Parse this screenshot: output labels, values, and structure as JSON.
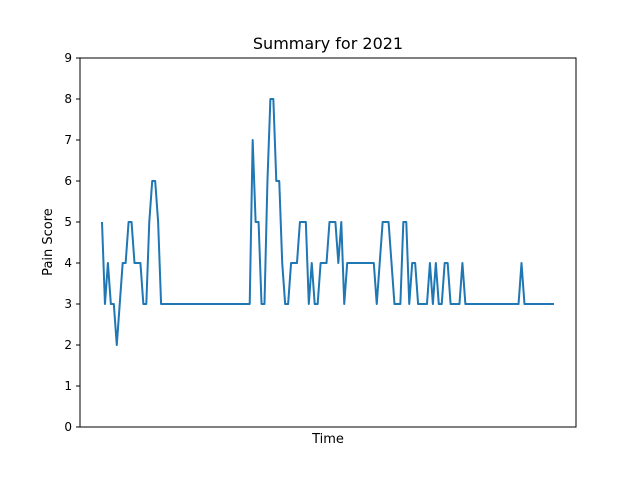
{
  "chart_data": {
    "type": "line",
    "title": "Summary for 2021",
    "xlabel": "Time",
    "ylabel": "Pain Score",
    "ylim": [
      0,
      9
    ],
    "yticks": [
      0,
      1,
      2,
      3,
      4,
      5,
      6,
      7,
      8,
      9
    ],
    "x_ticks_labeled": false,
    "grid": false,
    "legend": "none",
    "line_color": "#1f77b4",
    "series": [
      {
        "points": [
          [
            0,
            5
          ],
          [
            1,
            3
          ],
          [
            2,
            4
          ],
          [
            3,
            3
          ],
          [
            4,
            3
          ],
          [
            5,
            2
          ],
          [
            6,
            3
          ],
          [
            7,
            4
          ],
          [
            8,
            4
          ],
          [
            9,
            5
          ],
          [
            10,
            5
          ],
          [
            11,
            4
          ],
          [
            12,
            4
          ],
          [
            13,
            4
          ],
          [
            14,
            3
          ],
          [
            15,
            3
          ],
          [
            16,
            5
          ],
          [
            17,
            6
          ],
          [
            18,
            6
          ],
          [
            19,
            5
          ],
          [
            20,
            3
          ],
          [
            50,
            3
          ],
          [
            51,
            7
          ],
          [
            52,
            5
          ],
          [
            53,
            5
          ],
          [
            54,
            3
          ],
          [
            55,
            3
          ],
          [
            56,
            6
          ],
          [
            57,
            8
          ],
          [
            58,
            8
          ],
          [
            59,
            6
          ],
          [
            60,
            6
          ],
          [
            61,
            4
          ],
          [
            62,
            3
          ],
          [
            63,
            3
          ],
          [
            64,
            4
          ],
          [
            65,
            4
          ],
          [
            66,
            4
          ],
          [
            67,
            5
          ],
          [
            68,
            5
          ],
          [
            69,
            5
          ],
          [
            70,
            3
          ],
          [
            71,
            4
          ],
          [
            72,
            3
          ],
          [
            73,
            3
          ],
          [
            74,
            4
          ],
          [
            75,
            4
          ],
          [
            76,
            4
          ],
          [
            77,
            5
          ],
          [
            78,
            5
          ],
          [
            79,
            5
          ],
          [
            80,
            4
          ],
          [
            81,
            5
          ],
          [
            82,
            3
          ],
          [
            83,
            4
          ],
          [
            84,
            4
          ],
          [
            85,
            4
          ],
          [
            86,
            4
          ],
          [
            87,
            4
          ],
          [
            88,
            4
          ],
          [
            89,
            4
          ],
          [
            90,
            4
          ],
          [
            91,
            4
          ],
          [
            92,
            4
          ],
          [
            93,
            3
          ],
          [
            94,
            4
          ],
          [
            95,
            5
          ],
          [
            96,
            5
          ],
          [
            97,
            5
          ],
          [
            98,
            4
          ],
          [
            99,
            3
          ],
          [
            100,
            3
          ],
          [
            101,
            3
          ],
          [
            102,
            5
          ],
          [
            103,
            5
          ],
          [
            104,
            3
          ],
          [
            105,
            4
          ],
          [
            106,
            4
          ],
          [
            107,
            3
          ],
          [
            110,
            3
          ],
          [
            111,
            4
          ],
          [
            112,
            3
          ],
          [
            113,
            4
          ],
          [
            114,
            3
          ],
          [
            115,
            3
          ],
          [
            116,
            4
          ],
          [
            117,
            4
          ],
          [
            118,
            3
          ],
          [
            121,
            3
          ],
          [
            122,
            4
          ],
          [
            123,
            3
          ],
          [
            141,
            3
          ],
          [
            142,
            4
          ],
          [
            143,
            3
          ],
          [
            153,
            3
          ]
        ]
      }
    ]
  }
}
